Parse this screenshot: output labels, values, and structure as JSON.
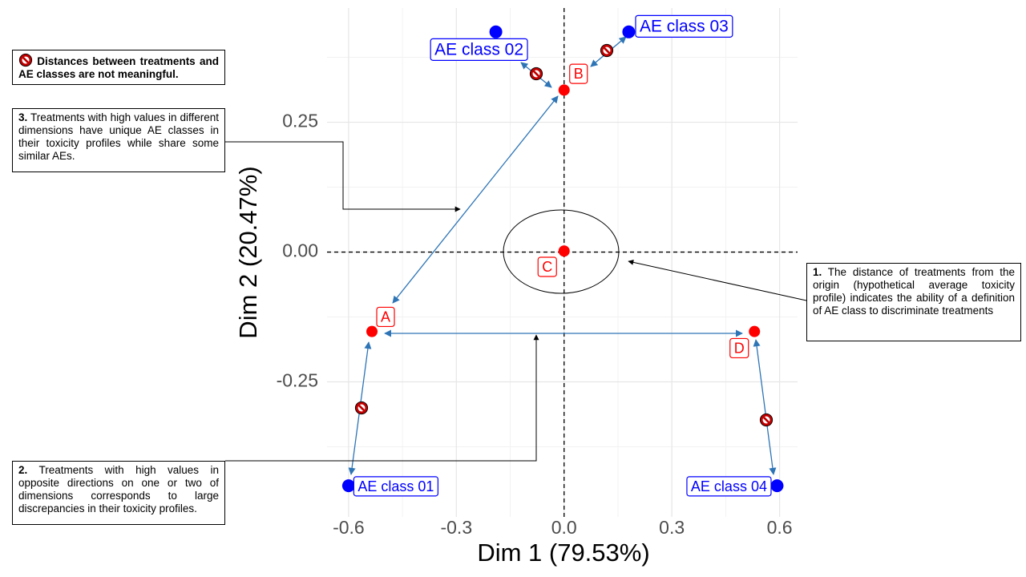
{
  "chart_data": {
    "type": "scatter",
    "x_label": "Dim 1 (79.53%)",
    "y_label": "Dim 2 (20.47%)",
    "xlim": [
      -0.66,
      0.65
    ],
    "ylim": [
      -0.51,
      0.47
    ],
    "xticks": [
      -0.6,
      -0.3,
      {
        "value": 0,
        "label": "0.0"
      },
      0.3,
      0.6
    ],
    "yticks": [
      -0.25,
      {
        "value": 0,
        "label": "0.00"
      },
      0.25
    ],
    "grid": true,
    "reference_lines": {
      "x": 0,
      "y": 0
    },
    "points": [
      {
        "label": "A",
        "x": -0.535,
        "y": -0.153,
        "color": "#ff0000"
      },
      {
        "label": "B",
        "x": 0.0,
        "y": 0.312,
        "color": "#ff0000"
      },
      {
        "label": "C",
        "x": 0.0,
        "y": 0.002,
        "color": "#ff0000"
      },
      {
        "label": "D",
        "x": 0.53,
        "y": -0.153,
        "color": "#ff0000"
      },
      {
        "label": "AE class 01",
        "x": -0.6,
        "y": -0.45,
        "color": "#0000ff"
      },
      {
        "label": "AE class 02",
        "x": -0.19,
        "y": 0.424,
        "color": "#0000ff"
      },
      {
        "label": "AE class 03",
        "x": 0.18,
        "y": 0.424,
        "color": "#0000ff"
      },
      {
        "label": "AE class 04",
        "x": 0.593,
        "y": -0.45,
        "color": "#0000ff"
      }
    ]
  },
  "annotations": [
    {
      "text": "Distances between treatments and AE classes are not meaningful."
    },
    {
      "number": "3.",
      "text": "Treatments with high values in different dimensions have unique AE classes in their toxicity profiles while share some similar AEs."
    },
    {
      "number": "2.",
      "text": "Treatments with high values in opposite directions on one or two of dimensions corresponds to large discrepancies in their toxicity profiles."
    },
    {
      "number": "1.",
      "text": "The distance of treatments from the origin (hypothetical average toxicity profile) indicates the ability of a definition of AE class to discriminate treatments"
    }
  ]
}
